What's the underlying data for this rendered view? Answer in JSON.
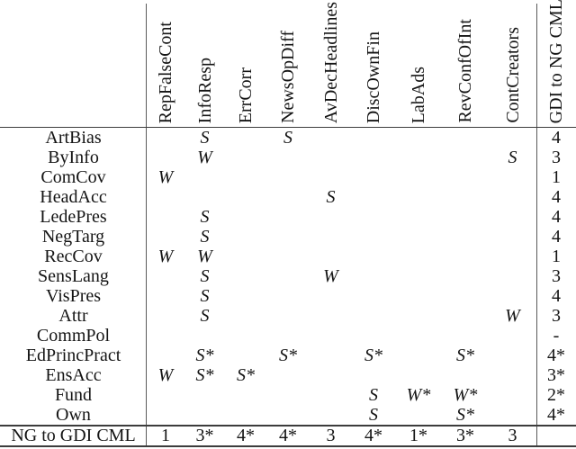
{
  "table": {
    "columns": [
      "RepFalseCont",
      "InfoResp",
      "ErrCorr",
      "NewsOpDiff",
      "AvDecHeadlines",
      "DiscOwnFin",
      "LabAds",
      "RevConfOfInt",
      "ContCreators"
    ],
    "last_column": "GDI to NG CML",
    "rows": [
      {
        "label": "ArtBias",
        "cells": [
          "",
          "S",
          "",
          "S",
          "",
          "",
          "",
          "",
          ""
        ],
        "total": "4"
      },
      {
        "label": "ByInfo",
        "cells": [
          "",
          "W",
          "",
          "",
          "",
          "",
          "",
          "",
          "S"
        ],
        "total": "3"
      },
      {
        "label": "ComCov",
        "cells": [
          "W",
          "",
          "",
          "",
          "",
          "",
          "",
          "",
          ""
        ],
        "total": "1"
      },
      {
        "label": "HeadAcc",
        "cells": [
          "",
          "",
          "",
          "",
          "S",
          "",
          "",
          "",
          ""
        ],
        "total": "4"
      },
      {
        "label": "LedePres",
        "cells": [
          "",
          "S",
          "",
          "",
          "",
          "",
          "",
          "",
          ""
        ],
        "total": "4"
      },
      {
        "label": "NegTarg",
        "cells": [
          "",
          "S",
          "",
          "",
          "",
          "",
          "",
          "",
          ""
        ],
        "total": "4"
      },
      {
        "label": "RecCov",
        "cells": [
          "W",
          "W",
          "",
          "",
          "",
          "",
          "",
          "",
          ""
        ],
        "total": "1"
      },
      {
        "label": "SensLang",
        "cells": [
          "",
          "S",
          "",
          "",
          "W",
          "",
          "",
          "",
          ""
        ],
        "total": "3"
      },
      {
        "label": "VisPres",
        "cells": [
          "",
          "S",
          "",
          "",
          "",
          "",
          "",
          "",
          ""
        ],
        "total": "4"
      },
      {
        "label": "Attr",
        "cells": [
          "",
          "S",
          "",
          "",
          "",
          "",
          "",
          "",
          "W"
        ],
        "total": "3"
      },
      {
        "label": "CommPol",
        "cells": [
          "",
          "",
          "",
          "",
          "",
          "",
          "",
          "",
          ""
        ],
        "total": "-"
      },
      {
        "label": "EdPrincPract",
        "cells": [
          "",
          "S*",
          "",
          "S*",
          "",
          "S*",
          "",
          "S*",
          ""
        ],
        "total": "4*"
      },
      {
        "label": "EnsAcc",
        "cells": [
          "W",
          "S*",
          "S*",
          "",
          "",
          "",
          "",
          "",
          ""
        ],
        "total": "3*"
      },
      {
        "label": "Fund",
        "cells": [
          "",
          "",
          "",
          "",
          "",
          "S",
          "W*",
          "W*",
          ""
        ],
        "total": "2*"
      },
      {
        "label": "Own",
        "cells": [
          "",
          "",
          "",
          "",
          "",
          "S",
          "",
          "S*",
          ""
        ],
        "total": "4*"
      }
    ],
    "footer": {
      "label": "NG to GDI CML",
      "cells": [
        "1",
        "3*",
        "4*",
        "4*",
        "3",
        "4*",
        "1*",
        "3*",
        "3"
      ],
      "total": ""
    }
  },
  "colors": {
    "background": "#ffffff",
    "text": "#141414",
    "rule": "#3c3c3c"
  }
}
